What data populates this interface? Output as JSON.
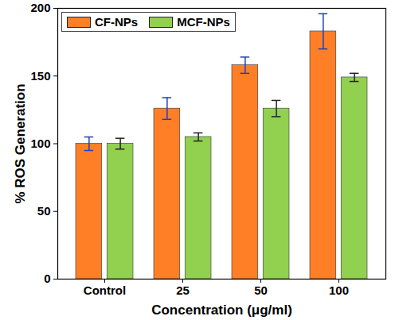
{
  "chart_data": {
    "type": "bar",
    "categories": [
      "Control",
      "25",
      "50",
      "100"
    ],
    "series": [
      {
        "name": "CF-NPs",
        "color": "#FF7F27",
        "values": [
          100,
          126,
          158,
          183
        ],
        "errors": [
          5,
          8,
          6,
          13
        ]
      },
      {
        "name": "MCF-NPs",
        "color": "#92D050",
        "values": [
          100,
          105,
          126,
          149
        ],
        "errors": [
          4,
          3,
          6,
          3
        ]
      }
    ],
    "x_label": "Concentration (μg/ml)",
    "y_label": "% ROS Generation",
    "ylim": [
      0,
      200
    ],
    "yticks": [
      0,
      50,
      100,
      150,
      200
    ],
    "grid": false,
    "legend": "upper left"
  }
}
